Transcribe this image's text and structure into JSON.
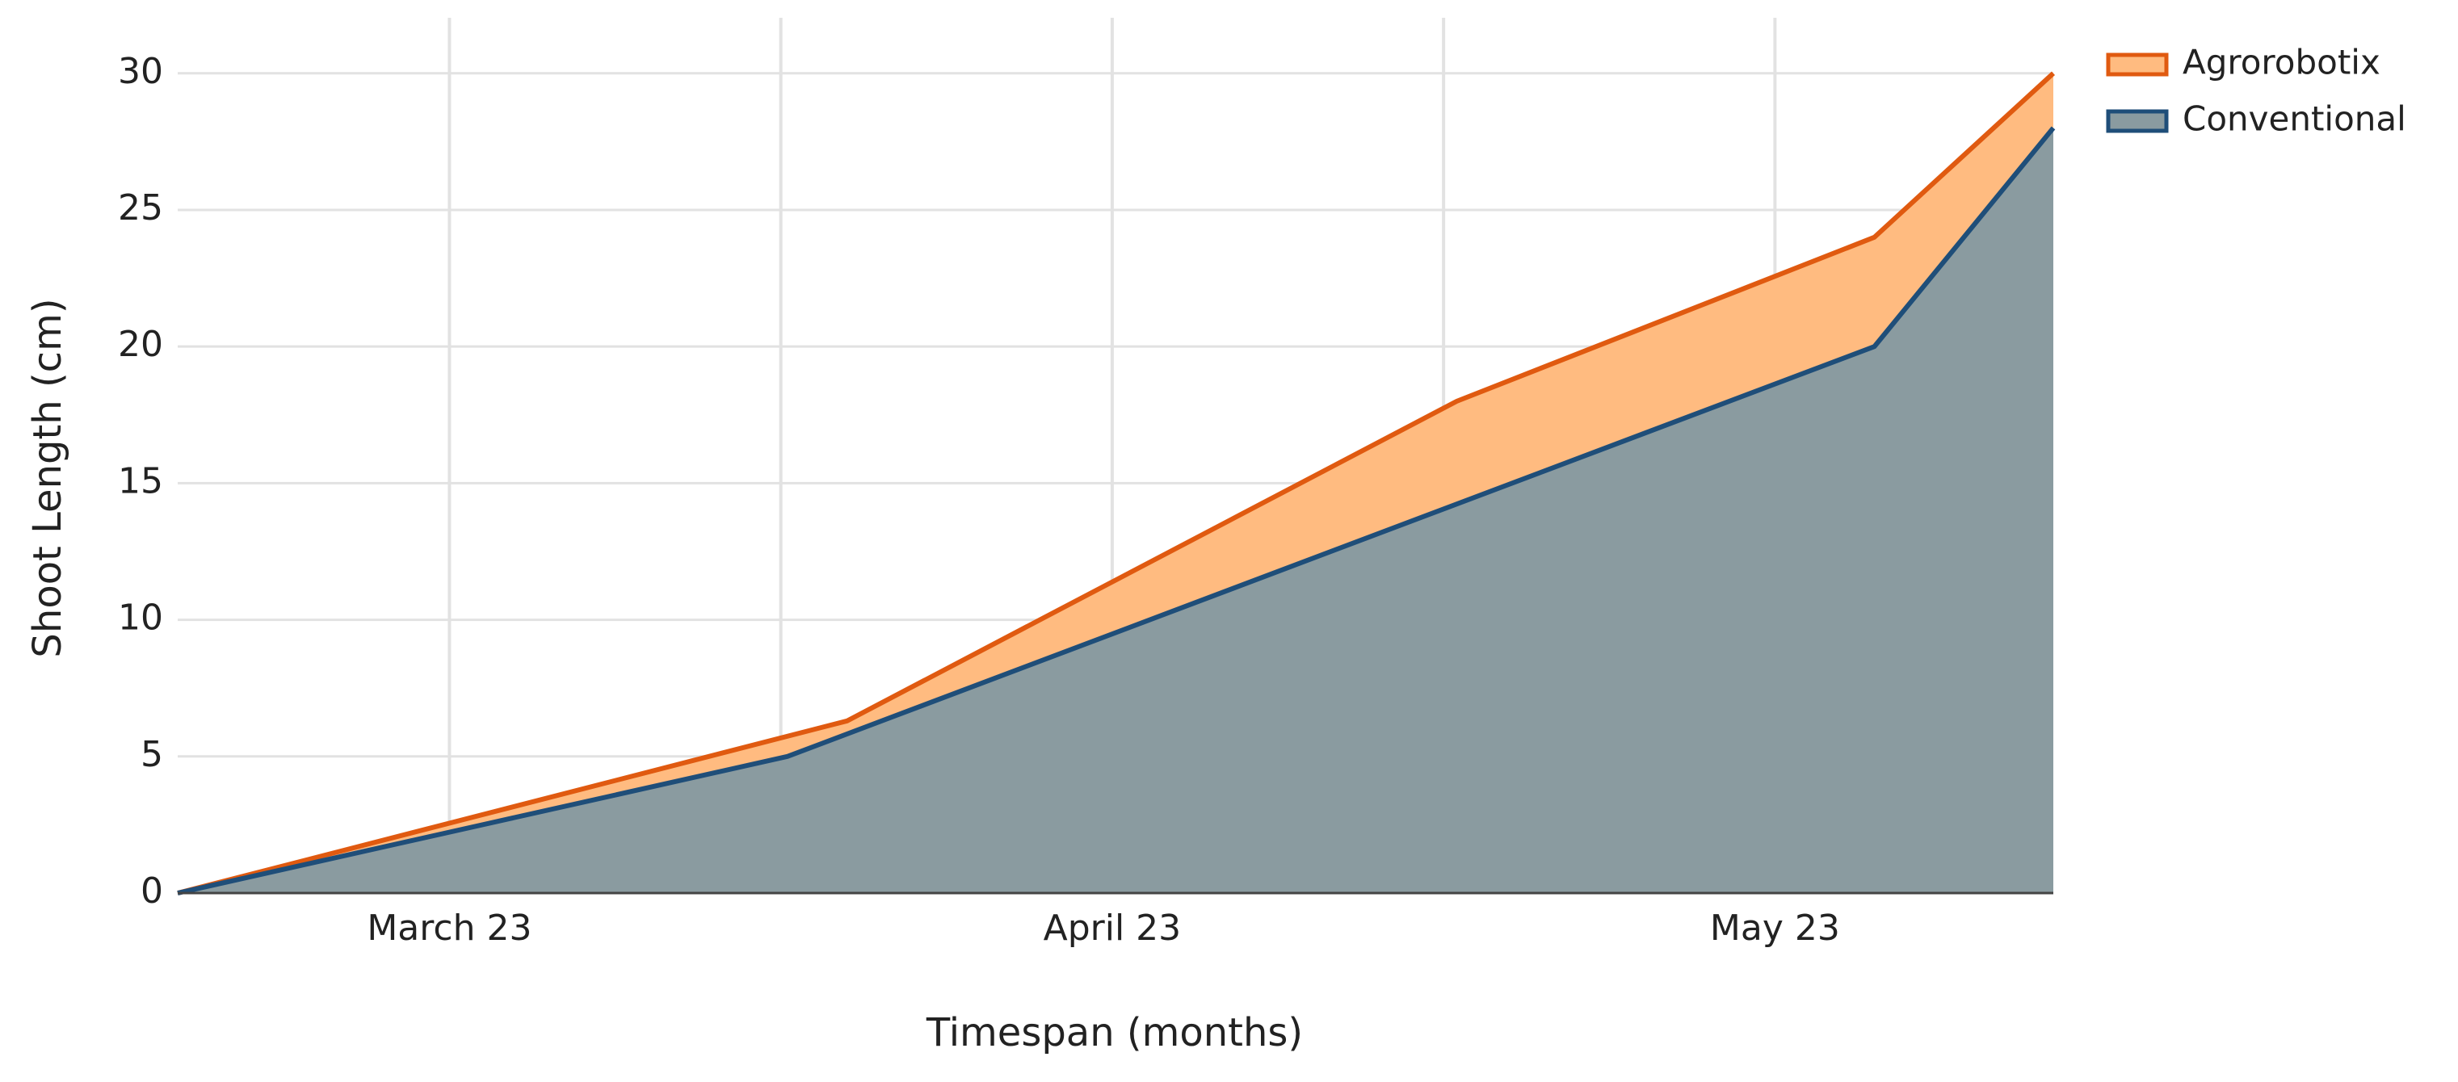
{
  "chart_data": {
    "type": "area",
    "x_label": "Timespan (months)",
    "y_label": "Shoot Length (cm)",
    "xlim": [
      0.59,
      3.42
    ],
    "xticks": [
      {
        "value": 1,
        "label": "March 23"
      },
      {
        "value": 2,
        "label": "April 23"
      },
      {
        "value": 3,
        "label": "May 23"
      }
    ],
    "xminor": [
      1.5,
      2.5
    ],
    "ylim": [
      0,
      31.5
    ],
    "yticks": [
      0,
      5,
      10,
      15,
      20,
      25,
      30
    ],
    "grid": true,
    "legend": "top-right",
    "series": [
      {
        "name": "Agrorobotix",
        "color": "#e05a10",
        "fill": "#ffbb80",
        "x": [
          0.59,
          1.6,
          2.52,
          3.15,
          3.42
        ],
        "values": [
          0,
          6.3,
          18,
          24,
          30
        ]
      },
      {
        "name": "Conventional",
        "color": "#1f4e79",
        "fill": "#8a9ba0",
        "x": [
          0.59,
          1.51,
          3.15,
          3.42
        ],
        "values": [
          0,
          5,
          20,
          28
        ]
      }
    ]
  }
}
